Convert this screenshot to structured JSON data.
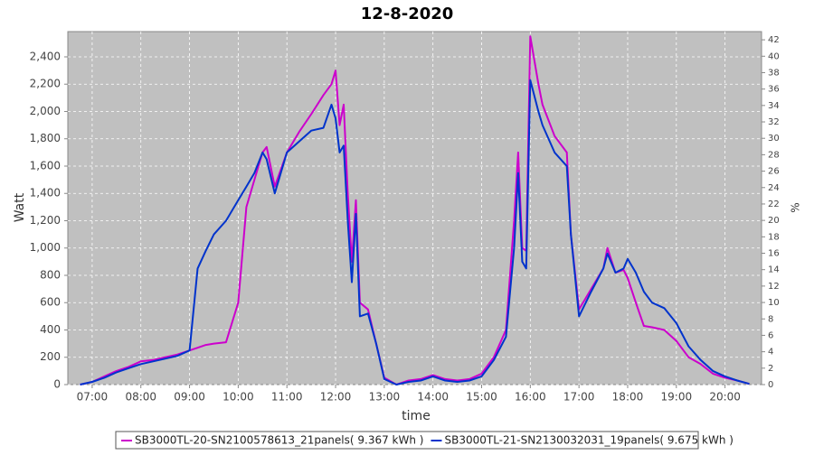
{
  "chart_data": {
    "type": "line",
    "title": "12-8-2020",
    "x_label": "time",
    "y_label": "Watt",
    "y2_label": "%",
    "x": [
      "06:45",
      "07:00",
      "07:15",
      "07:30",
      "07:45",
      "08:00",
      "08:15",
      "08:30",
      "08:45",
      "09:00",
      "09:10",
      "09:20",
      "09:30",
      "09:45",
      "10:00",
      "10:10",
      "10:20",
      "10:30",
      "10:35",
      "10:45",
      "11:00",
      "11:15",
      "11:30",
      "11:45",
      "11:55",
      "12:00",
      "12:05",
      "12:10",
      "12:15",
      "12:20",
      "12:25",
      "12:30",
      "12:40",
      "12:50",
      "13:00",
      "13:15",
      "13:30",
      "13:45",
      "14:00",
      "14:15",
      "14:30",
      "14:45",
      "15:00",
      "15:15",
      "15:30",
      "15:40",
      "15:45",
      "15:50",
      "15:55",
      "16:00",
      "16:10",
      "16:15",
      "16:30",
      "16:45",
      "16:50",
      "17:00",
      "17:15",
      "17:30",
      "17:35",
      "17:45",
      "17:55",
      "18:00",
      "18:10",
      "18:20",
      "18:30",
      "18:45",
      "19:00",
      "19:15",
      "19:30",
      "19:45",
      "20:00",
      "20:15",
      "20:30"
    ],
    "xlim": [
      "06:30",
      "20:45"
    ],
    "xticks": [
      "07:00",
      "08:00",
      "09:00",
      "10:00",
      "11:00",
      "12:00",
      "13:00",
      "14:00",
      "15:00",
      "16:00",
      "17:00",
      "18:00",
      "19:00",
      "20:00"
    ],
    "ylim": [
      0,
      2585
    ],
    "yticks": [
      0,
      {
        "value": 200,
        "label": "200"
      },
      {
        "value": 400,
        "label": "400"
      },
      {
        "value": 600,
        "label": "600"
      },
      {
        "value": 800,
        "label": "800"
      },
      {
        "value": 1000,
        "label": "1,000"
      },
      {
        "value": 1200,
        "label": "1,200"
      },
      {
        "value": 1400,
        "label": "1,400"
      },
      {
        "value": 1600,
        "label": "1,600"
      },
      {
        "value": 1800,
        "label": "1,800"
      },
      {
        "value": 2000,
        "label": "2,000"
      },
      {
        "value": 2200,
        "label": "2,200"
      },
      {
        "value": 2400,
        "label": "2,400"
      }
    ],
    "y2lim": [
      0,
      43
    ],
    "y2ticks": [
      0,
      2,
      4,
      6,
      8,
      10,
      12,
      14,
      16,
      18,
      20,
      22,
      24,
      26,
      28,
      30,
      32,
      34,
      36,
      38,
      40,
      42
    ],
    "grid": true,
    "legend": "bottom",
    "series": [
      {
        "name": "SB3000TL-20-SN2100578613_21panels( 9.367 kWh )",
        "color": "#cc00cc",
        "values": [
          0,
          20,
          60,
          100,
          130,
          170,
          180,
          200,
          220,
          250,
          270,
          290,
          300,
          310,
          600,
          1300,
          1500,
          1700,
          1740,
          1450,
          1700,
          1850,
          1980,
          2120,
          2200,
          2300,
          1900,
          2050,
          1400,
          900,
          1350,
          600,
          550,
          300,
          50,
          0,
          30,
          40,
          70,
          40,
          30,
          40,
          80,
          200,
          400,
          1200,
          1700,
          1000,
          980,
          2550,
          2200,
          2050,
          1820,
          1700,
          1100,
          550,
          700,
          850,
          1000,
          820,
          840,
          780,
          600,
          430,
          420,
          400,
          320,
          200,
          150,
          80,
          50,
          30,
          5
        ]
      },
      {
        "name": "SB3000TL-21-SN2130032031_19panels( 9.675 kWh )",
        "color": "#0033cc",
        "values": [
          0,
          20,
          50,
          90,
          120,
          150,
          170,
          190,
          210,
          250,
          850,
          980,
          1100,
          1200,
          1350,
          1450,
          1550,
          1700,
          1650,
          1400,
          1700,
          1780,
          1860,
          1880,
          2050,
          1950,
          1700,
          1750,
          1200,
          750,
          1250,
          500,
          520,
          300,
          40,
          0,
          20,
          30,
          60,
          30,
          20,
          30,
          60,
          180,
          350,
          1000,
          1550,
          900,
          850,
          2230,
          2000,
          1900,
          1700,
          1600,
          1100,
          500,
          680,
          850,
          960,
          820,
          850,
          920,
          820,
          680,
          600,
          560,
          450,
          280,
          180,
          100,
          60,
          30,
          5
        ]
      }
    ]
  }
}
